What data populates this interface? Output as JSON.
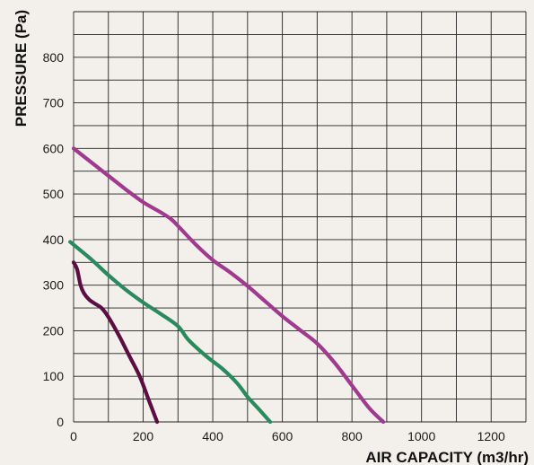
{
  "chart_data": {
    "type": "line",
    "title": "",
    "xlabel": "AIR CAPACITY (m3/hr)",
    "ylabel": "PRESSURE (Pa)",
    "xlim": [
      0,
      1300
    ],
    "ylim": [
      0,
      900
    ],
    "x_ticks": [
      0,
      200,
      400,
      600,
      800,
      1000,
      1200
    ],
    "y_ticks": [
      0,
      100,
      200,
      300,
      400,
      500,
      600,
      700,
      800
    ],
    "grid": true,
    "x_minor_step": 100,
    "y_minor_step": 50,
    "series": [
      {
        "color": "#a03a8e",
        "x": [
          0,
          50,
          100,
          150,
          200,
          250,
          280,
          300,
          350,
          400,
          450,
          500,
          550,
          600,
          650,
          700,
          750,
          800,
          850,
          890
        ],
        "y": [
          600,
          570,
          540,
          510,
          482,
          460,
          445,
          430,
          390,
          355,
          328,
          298,
          265,
          232,
          202,
          172,
          130,
          80,
          30,
          0
        ]
      },
      {
        "color": "#2a8a5e",
        "x": [
          -10,
          50,
          100,
          150,
          200,
          250,
          300,
          330,
          380,
          430,
          470,
          500,
          530,
          565
        ],
        "y": [
          395,
          357,
          322,
          290,
          262,
          237,
          210,
          180,
          145,
          115,
          85,
          55,
          30,
          0
        ]
      },
      {
        "color": "#5a0e42",
        "x": [
          0,
          10,
          20,
          30,
          45,
          60,
          80,
          100,
          130,
          160,
          190,
          215,
          230,
          240
        ],
        "y": [
          350,
          335,
          300,
          282,
          268,
          260,
          250,
          230,
          190,
          145,
          100,
          50,
          20,
          0
        ]
      }
    ]
  }
}
